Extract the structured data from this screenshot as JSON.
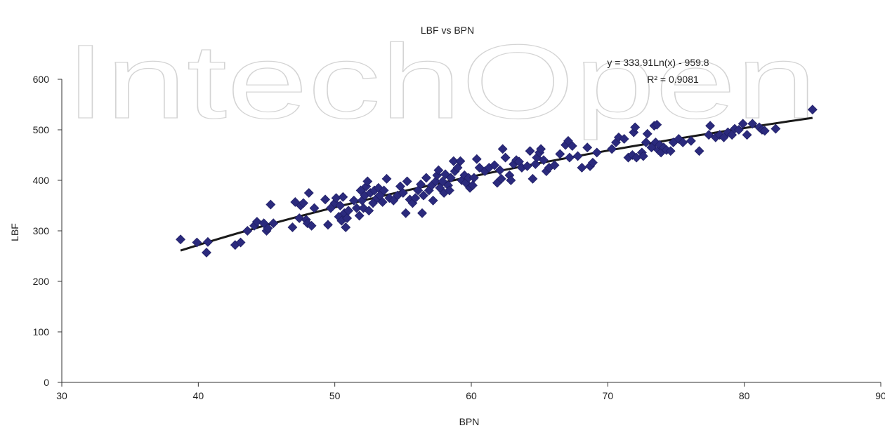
{
  "watermark": "IntechOpen",
  "chart_data": {
    "type": "scatter",
    "title": "LBF vs BPN",
    "xlabel": "BPN",
    "ylabel": "LBF",
    "xlim": [
      30,
      90
    ],
    "ylim": [
      0,
      600
    ],
    "xticks": [
      30,
      40,
      50,
      60,
      70,
      80,
      90
    ],
    "yticks": [
      0,
      100,
      200,
      300,
      400,
      500,
      600
    ],
    "grid": false,
    "legend": "none",
    "marker_color": "#2b2a7d",
    "marker": "diamond",
    "trendline": {
      "type": "logarithmic",
      "a": 333.91,
      "b": -959.8,
      "x_range": [
        38.7,
        85
      ],
      "color": "#1a1a1a",
      "equation_label": "y = 333.91Ln(x) - 959.8",
      "r2_label": "R² = 0.9081"
    },
    "series": [
      {
        "points": [
          [
            38.7,
            283
          ],
          [
            39.9,
            277
          ],
          [
            40.6,
            257
          ],
          [
            40.7,
            278
          ],
          [
            42.7,
            272
          ],
          [
            43.1,
            277
          ],
          [
            43.6,
            300
          ],
          [
            44.1,
            310
          ],
          [
            44.3,
            318
          ],
          [
            44.8,
            315
          ],
          [
            45.0,
            300
          ],
          [
            45.1,
            305
          ],
          [
            45.3,
            352
          ],
          [
            45.5,
            315
          ],
          [
            46.9,
            307
          ],
          [
            47.1,
            357
          ],
          [
            47.4,
            325
          ],
          [
            47.5,
            350
          ],
          [
            47.7,
            355
          ],
          [
            47.9,
            322
          ],
          [
            48.0,
            315
          ],
          [
            48.1,
            375
          ],
          [
            48.3,
            310
          ],
          [
            48.5,
            345
          ],
          [
            49.3,
            362
          ],
          [
            49.5,
            312
          ],
          [
            49.7,
            345
          ],
          [
            50.0,
            355
          ],
          [
            50.1,
            365
          ],
          [
            50.3,
            328
          ],
          [
            50.4,
            350
          ],
          [
            50.5,
            320
          ],
          [
            50.6,
            367
          ],
          [
            50.7,
            335
          ],
          [
            50.8,
            307
          ],
          [
            50.9,
            325
          ],
          [
            51.0,
            340
          ],
          [
            51.4,
            360
          ],
          [
            51.6,
            345
          ],
          [
            51.8,
            330
          ],
          [
            51.9,
            380
          ],
          [
            52.0,
            360
          ],
          [
            52.1,
            345
          ],
          [
            52.2,
            370
          ],
          [
            52.3,
            388
          ],
          [
            52.4,
            398
          ],
          [
            52.5,
            340
          ],
          [
            52.6,
            375
          ],
          [
            52.8,
            355
          ],
          [
            52.9,
            380
          ],
          [
            53.1,
            365
          ],
          [
            53.2,
            385
          ],
          [
            53.3,
            370
          ],
          [
            53.5,
            357
          ],
          [
            53.6,
            380
          ],
          [
            53.8,
            403
          ],
          [
            54.0,
            365
          ],
          [
            54.3,
            360
          ],
          [
            54.6,
            370
          ],
          [
            54.8,
            388
          ],
          [
            55.0,
            375
          ],
          [
            55.2,
            335
          ],
          [
            55.3,
            398
          ],
          [
            55.5,
            362
          ],
          [
            55.7,
            355
          ],
          [
            55.9,
            365
          ],
          [
            56.1,
            380
          ],
          [
            56.3,
            392
          ],
          [
            56.4,
            335
          ],
          [
            56.5,
            370
          ],
          [
            56.7,
            405
          ],
          [
            56.9,
            380
          ],
          [
            57.1,
            390
          ],
          [
            57.2,
            360
          ],
          [
            57.4,
            398
          ],
          [
            57.5,
            410
          ],
          [
            57.6,
            420
          ],
          [
            57.7,
            385
          ],
          [
            57.9,
            398
          ],
          [
            58.0,
            375
          ],
          [
            58.1,
            412
          ],
          [
            58.3,
            390
          ],
          [
            58.4,
            380
          ],
          [
            58.5,
            405
          ],
          [
            58.7,
            438
          ],
          [
            58.8,
            418
          ],
          [
            59.0,
            425
          ],
          [
            59.2,
            438
          ],
          [
            59.3,
            400
          ],
          [
            59.5,
            410
          ],
          [
            59.6,
            395
          ],
          [
            59.8,
            405
          ],
          [
            59.9,
            385
          ],
          [
            60.1,
            390
          ],
          [
            60.2,
            405
          ],
          [
            60.4,
            442
          ],
          [
            60.6,
            425
          ],
          [
            61.0,
            418
          ],
          [
            61.3,
            425
          ],
          [
            61.7,
            430
          ],
          [
            61.9,
            395
          ],
          [
            62.1,
            420
          ],
          [
            62.2,
            403
          ],
          [
            62.3,
            462
          ],
          [
            62.5,
            445
          ],
          [
            62.8,
            410
          ],
          [
            62.9,
            400
          ],
          [
            63.1,
            432
          ],
          [
            63.3,
            440
          ],
          [
            63.5,
            437
          ],
          [
            63.7,
            425
          ],
          [
            64.1,
            428
          ],
          [
            64.3,
            458
          ],
          [
            64.5,
            403
          ],
          [
            64.7,
            432
          ],
          [
            64.8,
            445
          ],
          [
            65.0,
            455
          ],
          [
            65.1,
            462
          ],
          [
            65.3,
            440
          ],
          [
            65.5,
            418
          ],
          [
            65.7,
            425
          ],
          [
            66.1,
            430
          ],
          [
            66.5,
            452
          ],
          [
            66.9,
            470
          ],
          [
            67.1,
            478
          ],
          [
            67.2,
            445
          ],
          [
            67.4,
            468
          ],
          [
            67.8,
            448
          ],
          [
            68.1,
            425
          ],
          [
            68.5,
            465
          ],
          [
            68.7,
            428
          ],
          [
            68.9,
            435
          ],
          [
            69.2,
            455
          ],
          [
            70.3,
            462
          ],
          [
            70.6,
            475
          ],
          [
            70.8,
            485
          ],
          [
            71.2,
            482
          ],
          [
            71.5,
            445
          ],
          [
            71.8,
            450
          ],
          [
            71.9,
            495
          ],
          [
            72.0,
            505
          ],
          [
            72.1,
            445
          ],
          [
            72.5,
            455
          ],
          [
            72.6,
            448
          ],
          [
            72.8,
            475
          ],
          [
            72.9,
            492
          ],
          [
            73.2,
            465
          ],
          [
            73.4,
            508
          ],
          [
            73.5,
            475
          ],
          [
            73.6,
            510
          ],
          [
            73.7,
            460
          ],
          [
            73.8,
            470
          ],
          [
            73.9,
            455
          ],
          [
            74.1,
            465
          ],
          [
            74.3,
            460
          ],
          [
            74.6,
            458
          ],
          [
            74.8,
            475
          ],
          [
            75.2,
            482
          ],
          [
            75.5,
            475
          ],
          [
            76.1,
            478
          ],
          [
            76.7,
            458
          ],
          [
            77.4,
            490
          ],
          [
            77.5,
            508
          ],
          [
            77.9,
            485
          ],
          [
            78.2,
            490
          ],
          [
            78.5,
            485
          ],
          [
            78.8,
            495
          ],
          [
            79.1,
            490
          ],
          [
            79.3,
            502
          ],
          [
            79.6,
            500
          ],
          [
            79.9,
            512
          ],
          [
            80.2,
            490
          ],
          [
            80.6,
            512
          ],
          [
            81.1,
            505
          ],
          [
            81.3,
            500
          ],
          [
            81.5,
            498
          ],
          [
            82.3,
            502
          ],
          [
            85.0,
            540
          ]
        ]
      }
    ]
  }
}
